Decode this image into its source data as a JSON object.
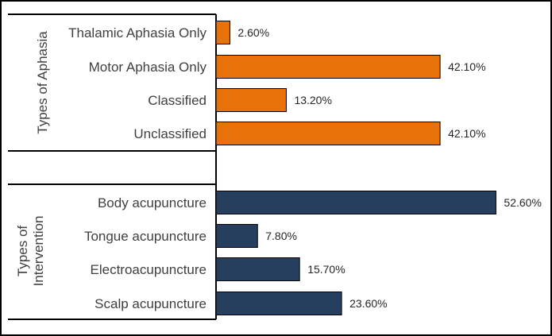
{
  "chart_data": {
    "type": "bar",
    "orientation": "horizontal",
    "value_format": "percent_2dp",
    "xlim": [
      0,
      60
    ],
    "grid": false,
    "groups": [
      {
        "name": "Types of Aphasia",
        "color": "#E8710A",
        "categories": [
          "Thalamic Aphasia Only",
          "Motor Aphasia Only",
          "Classified",
          "Unclassified"
        ],
        "values": [
          2.6,
          42.1,
          13.2,
          42.1
        ],
        "labels": [
          "2.60%",
          "42.10%",
          "13.20%",
          "42.10%"
        ]
      },
      {
        "name": "Types of Intervention",
        "color": "#263F5E",
        "categories": [
          "Body acupuncture",
          "Tongue acupuncture",
          "Electroacupuncture",
          "Scalp acupuncture"
        ],
        "values": [
          52.6,
          7.8,
          15.7,
          23.6
        ],
        "labels": [
          "52.60%",
          "7.80%",
          "15.70%",
          "23.60%"
        ]
      }
    ]
  }
}
